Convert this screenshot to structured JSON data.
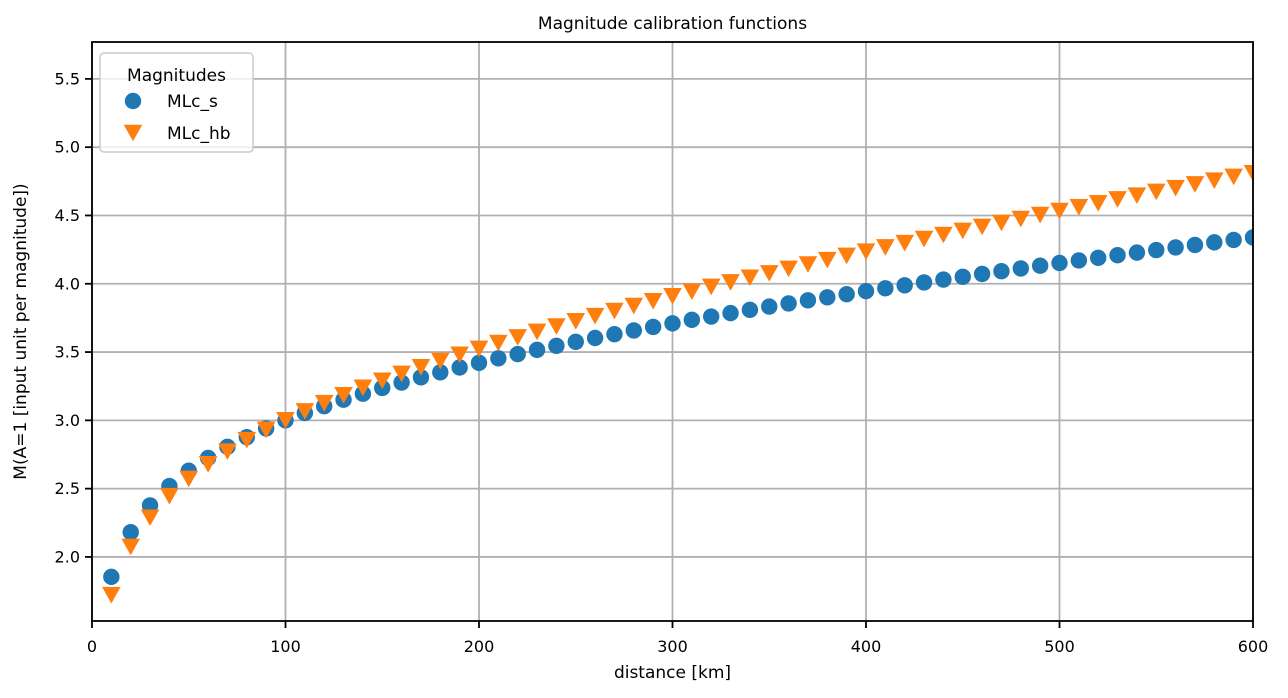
{
  "chart_data": {
    "type": "scatter",
    "title": "Magnitude calibration functions",
    "xlabel": "distance [km]",
    "ylabel": "M(A=1 [input unit per magnitude])",
    "xlim": [
      0,
      600
    ],
    "ylim": [
      1.531,
      5.77
    ],
    "xticks": [
      0,
      100,
      200,
      300,
      400,
      500,
      600
    ],
    "yticks": [
      2.0,
      2.5,
      3.0,
      3.5,
      4.0,
      4.5,
      5.0,
      5.5
    ],
    "xtick_labels": [
      "0",
      "100",
      "200",
      "300",
      "400",
      "500",
      "600"
    ],
    "ytick_labels": [
      "2.0",
      "2.5",
      "3.0",
      "3.5",
      "4.0",
      "4.5",
      "5.0",
      "5.5"
    ],
    "grid": true,
    "legend": {
      "title": "Magnitudes",
      "position": "upper left"
    },
    "x": [
      10,
      20,
      30,
      40,
      50,
      60,
      70,
      80,
      90,
      100,
      110,
      120,
      130,
      140,
      150,
      160,
      170,
      180,
      190,
      200,
      210,
      220,
      230,
      240,
      250,
      260,
      270,
      280,
      290,
      300,
      310,
      320,
      330,
      340,
      350,
      360,
      370,
      380,
      390,
      400,
      410,
      420,
      430,
      440,
      450,
      460,
      470,
      480,
      490,
      500,
      510,
      520,
      530,
      540,
      550,
      560,
      570,
      580,
      590,
      600
    ],
    "series": [
      {
        "name": "MLc_s",
        "marker": "circle",
        "color": "#1f77b4",
        "values": [
          1.854,
          2.181,
          2.377,
          2.519,
          2.631,
          2.725,
          2.806,
          2.877,
          2.941,
          3.0,
          3.054,
          3.104,
          3.151,
          3.195,
          3.237,
          3.277,
          3.315,
          3.352,
          3.387,
          3.421,
          3.454,
          3.485,
          3.516,
          3.546,
          3.575,
          3.603,
          3.631,
          3.658,
          3.684,
          3.71,
          3.736,
          3.76,
          3.785,
          3.809,
          3.833,
          3.856,
          3.879,
          3.901,
          3.924,
          3.946,
          3.967,
          3.989,
          4.01,
          4.031,
          4.051,
          4.072,
          4.092,
          4.112,
          4.132,
          4.152,
          4.171,
          4.19,
          4.209,
          4.228,
          4.247,
          4.266,
          4.284,
          4.303,
          4.321,
          4.339
        ]
      },
      {
        "name": "MLc_hb",
        "marker": "triangle-down",
        "color": "#ff7f0e",
        "values": [
          1.72,
          2.073,
          2.287,
          2.445,
          2.571,
          2.678,
          2.771,
          2.855,
          2.93,
          3.0,
          3.065,
          3.126,
          3.183,
          3.238,
          3.29,
          3.34,
          3.388,
          3.435,
          3.48,
          3.523,
          3.566,
          3.607,
          3.647,
          3.687,
          3.725,
          3.763,
          3.8,
          3.837,
          3.872,
          3.908,
          3.942,
          3.977,
          4.01,
          4.044,
          4.076,
          4.109,
          4.141,
          4.173,
          4.204,
          4.235,
          4.266,
          4.297,
          4.327,
          4.357,
          4.387,
          4.416,
          4.445,
          4.474,
          4.503,
          4.532,
          4.56,
          4.589,
          4.617,
          4.645,
          4.672,
          4.7,
          4.727,
          4.755,
          4.782,
          4.809
        ]
      }
    ],
    "colors": {
      "grid": "#b0b0b0",
      "spine": "#000000",
      "text": "#000000",
      "legend_border": "#cccccc",
      "background": "#ffffff"
    }
  }
}
